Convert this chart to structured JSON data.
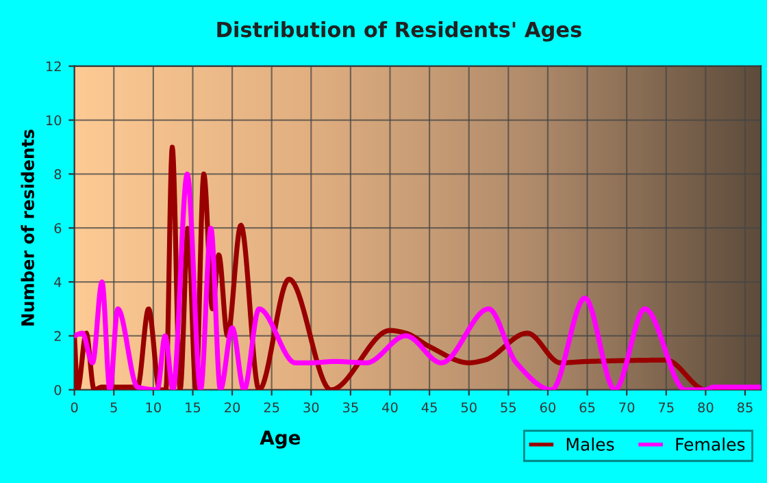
{
  "chart_data": {
    "type": "line",
    "title": "Distribution of Residents' Ages",
    "xlabel": "Age",
    "ylabel": "Number of residents",
    "xlim": [
      0,
      87
    ],
    "ylim": [
      0,
      12
    ],
    "xticks": [
      0,
      5,
      10,
      15,
      20,
      25,
      30,
      35,
      40,
      45,
      50,
      55,
      60,
      65,
      70,
      75,
      80,
      85
    ],
    "yticks": [
      0,
      2,
      4,
      6,
      8,
      10,
      12
    ],
    "grid": true,
    "legend": "bottom right",
    "marker": "none",
    "line_style": "solid",
    "series": [
      {
        "name": "Males",
        "color": "#990000",
        "x": [
          0,
          0.4,
          1.5,
          2.5,
          3.5,
          8,
          9.4,
          10.8,
          11.6,
          12.4,
          13.4,
          14.4,
          15.4,
          16.4,
          17.5,
          18.3,
          19.4,
          21.1,
          23.4,
          27.2,
          32.5,
          40,
          42,
          45,
          50,
          52,
          57.4,
          61.6,
          65,
          75,
          80,
          87
        ],
        "values": [
          2,
          0,
          2.1,
          0,
          0.1,
          0.1,
          3,
          0,
          0,
          9,
          0,
          6,
          0,
          8,
          3,
          5,
          2,
          6.1,
          0,
          4.1,
          0,
          2.2,
          2.1,
          1.6,
          1,
          1.1,
          2.1,
          1,
          1.05,
          1.1,
          0,
          0
        ]
      },
      {
        "name": "Females",
        "color": "#ff00ff",
        "x": [
          0,
          1,
          2.3,
          3.5,
          4.5,
          5.5,
          8,
          10.5,
          11.5,
          12.5,
          14.3,
          16,
          17.3,
          18.5,
          20,
          21.5,
          23.4,
          28,
          30,
          33,
          37,
          42,
          46.5,
          52.5,
          56,
          60.5,
          64.7,
          68.5,
          72.3,
          77.4,
          80,
          81,
          87
        ],
        "values": [
          2,
          2.1,
          1,
          4,
          0,
          3,
          0.1,
          0,
          2,
          0,
          8,
          0,
          6,
          0,
          2.3,
          0,
          3,
          1,
          1,
          1.05,
          1,
          2,
          1,
          3,
          1,
          0,
          3.4,
          0,
          3,
          0,
          0,
          0.1,
          0.1
        ]
      }
    ]
  }
}
